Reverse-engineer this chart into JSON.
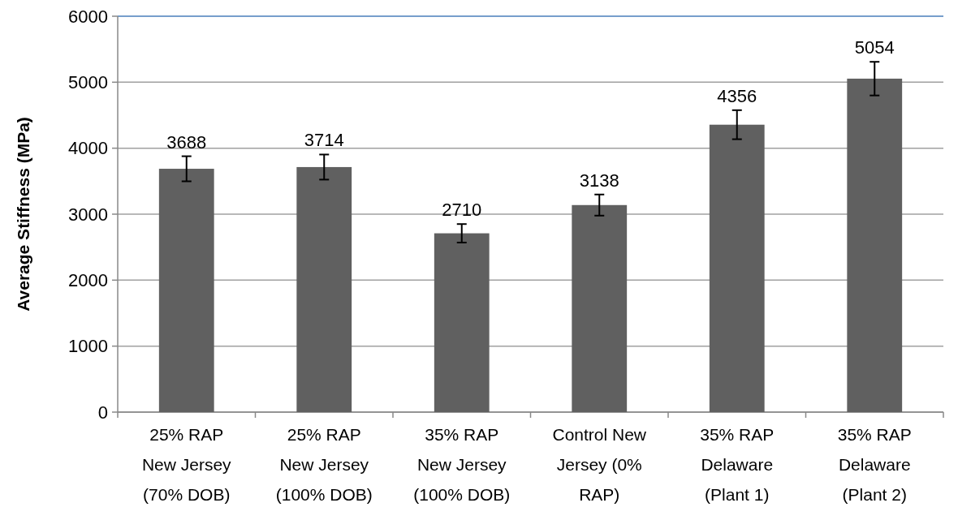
{
  "chart_data": {
    "type": "bar",
    "ylabel": "Average Stiffness (MPa)",
    "categories": [
      "25% RAP\nNew Jersey\n(70% DOB)",
      "25% RAP\nNew Jersey\n(100% DOB)",
      "35% RAP\nNew Jersey\n(100% DOB)",
      "Control New\nJersey (0%\nRAP)",
      "35% RAP\nDelaware\n(Plant 1)",
      "35% RAP\nDelaware\n(Plant 2)"
    ],
    "values": [
      3688,
      3714,
      2710,
      3138,
      4356,
      5054
    ],
    "errors": [
      190,
      190,
      140,
      160,
      220,
      255
    ],
    "color": "#606060",
    "data_labels": true,
    "grid": "y",
    "ylim": [
      0,
      6000
    ],
    "yticks": [
      0,
      1000,
      2000,
      3000,
      4000,
      5000,
      6000
    ]
  }
}
